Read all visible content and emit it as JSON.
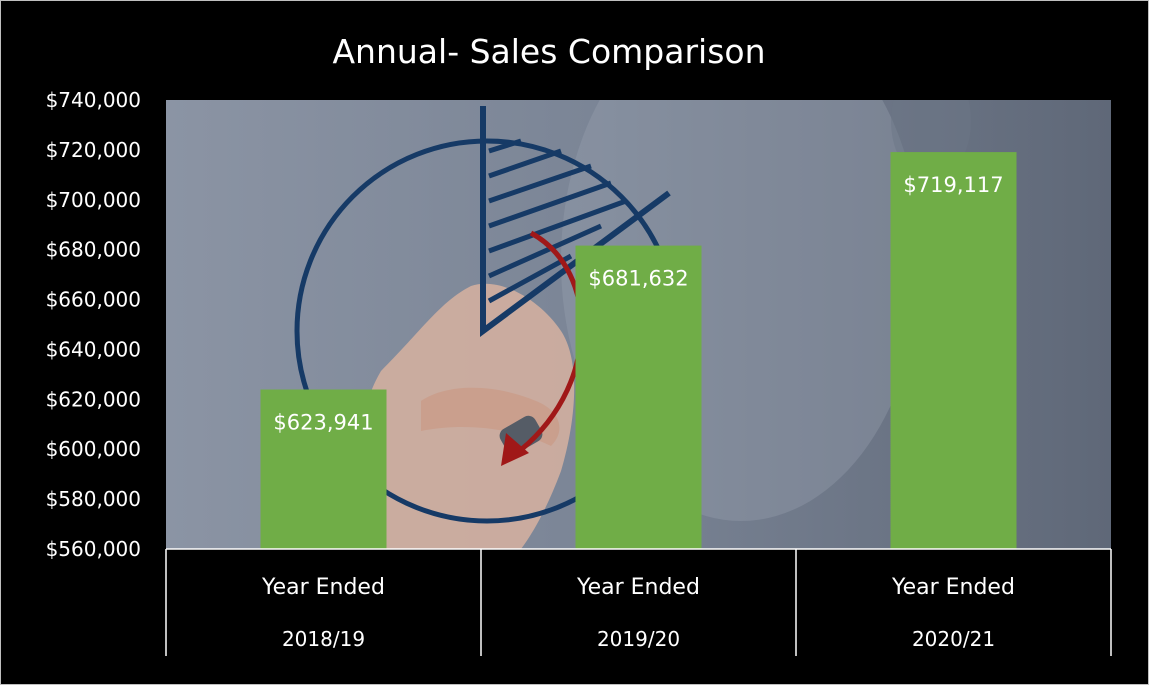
{
  "chart_data": {
    "type": "bar",
    "title": "Annual- Sales Comparison",
    "categories": [
      [
        "Year Ended",
        "2018/19"
      ],
      [
        "Year Ended",
        "2019/20"
      ],
      [
        "Year Ended",
        "2020/21"
      ]
    ],
    "values": [
      623941,
      681632,
      719117
    ],
    "data_labels": [
      "$623,941",
      "$681,632",
      "$719,117"
    ],
    "y_ticks": [
      "$560,000",
      "$580,000",
      "$600,000",
      "$620,000",
      "$640,000",
      "$660,000",
      "$680,000",
      "$700,000",
      "$720,000",
      "$740,000"
    ],
    "ylim": [
      560000,
      740000
    ],
    "grid": false,
    "legend": "none",
    "colors": {
      "bar": "#70ad47",
      "background": "#000000",
      "text": "#ffffff",
      "axis": "#ffffff"
    },
    "background_image": "hand-drawing-pie-chart"
  }
}
